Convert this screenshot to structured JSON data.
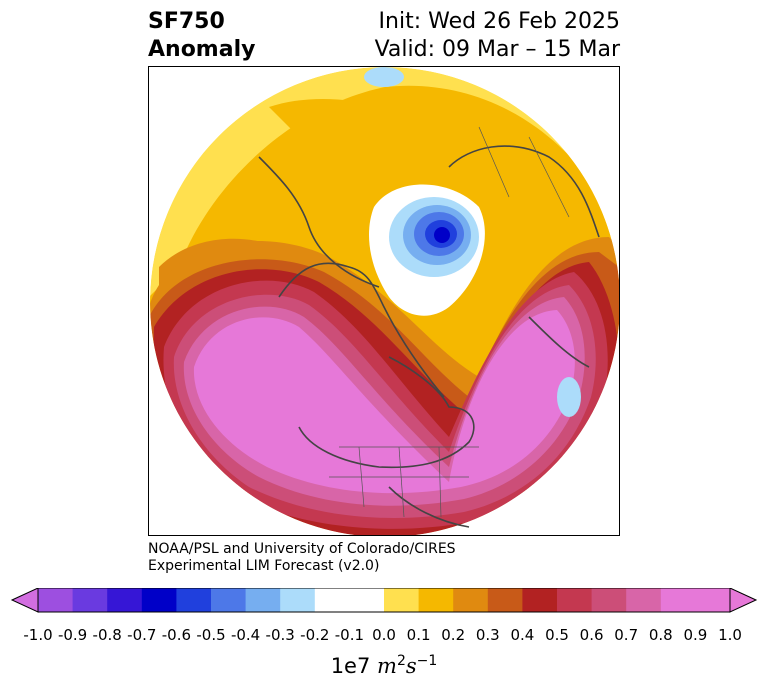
{
  "header": {
    "title_line1": "SF750",
    "title_line2": "Anomaly",
    "init_text": "Init: Wed 26 Feb 2025",
    "valid_text": "Valid: 09 Mar – 15 Mar"
  },
  "credit": {
    "line1": "NOAA/PSL and University of Colorado/CIRES",
    "line2": "Experimental LIM Forecast (v2.0)"
  },
  "colorbar": {
    "ticks": [
      "-1.0",
      "-0.9",
      "-0.8",
      "-0.7",
      "-0.6",
      "-0.5",
      "-0.4",
      "-0.3",
      "-0.2",
      "-0.1",
      "0.0",
      "0.1",
      "0.2",
      "0.3",
      "0.4",
      "0.5",
      "0.6",
      "0.7",
      "0.8",
      "0.9",
      "1.0"
    ],
    "colors": [
      "#9d4fe0",
      "#6a3ae0",
      "#3616d6",
      "#0000c8",
      "#2040dd",
      "#4d78e8",
      "#76aef0",
      "#acdcfa",
      "#ffffff",
      "#ffffff",
      "#ffe04f",
      "#f5b800",
      "#e08a10",
      "#c85a18",
      "#b22222",
      "#c43850",
      "#cc4e78",
      "#d865a8",
      "#e678d8",
      "#e678d8"
    ],
    "under_color": "#d26ee0",
    "over_color": "#e678d8",
    "units_prefix": "1e7",
    "units_m": "m",
    "units_m_exp": "2",
    "units_s": "s",
    "units_s_exp": "−1"
  },
  "map": {
    "projection": "north-polar-stereographic",
    "field": "SF750 anomaly",
    "colors": {
      "yellow": "#ffe04f",
      "gold": "#f5b800",
      "orange": "#e08a10",
      "darkorange": "#c85a18",
      "red": "#b22222",
      "crimson": "#c43850",
      "rose": "#cc4e78",
      "pink": "#d865a8",
      "magenta": "#e678d8",
      "lightblue": "#acdcfa",
      "blue1": "#76aef0",
      "blue2": "#4d78e8",
      "blue3": "#2040dd",
      "blue4": "#0000c8",
      "coast": "#444444"
    }
  }
}
